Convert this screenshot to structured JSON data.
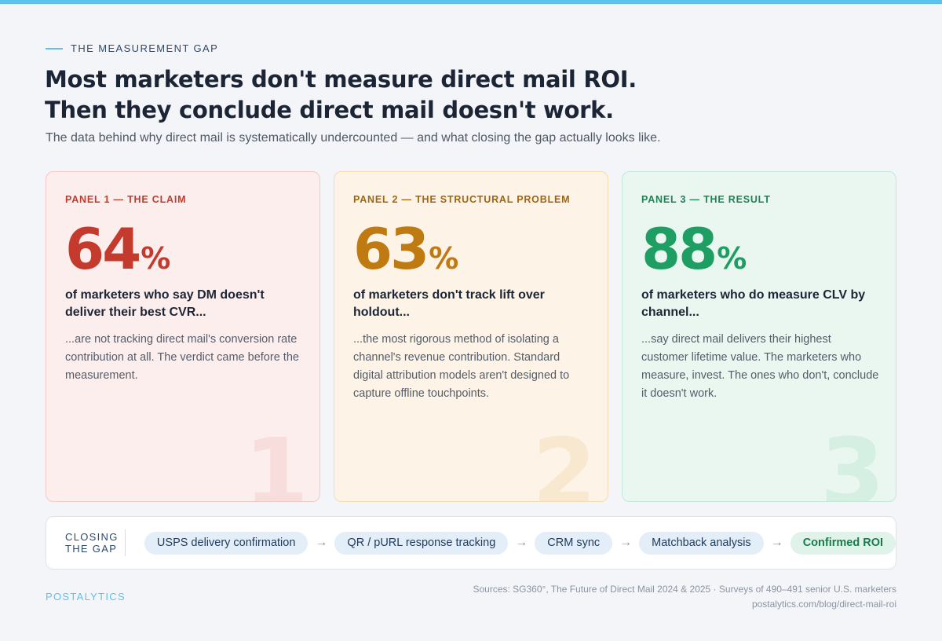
{
  "eyebrow": "THE MEASUREMENT GAP",
  "headline": {
    "line1": "Most marketers don't measure direct mail ROI.",
    "line2": "Then they conclude direct mail doesn't work."
  },
  "subhead": "The data behind why direct mail is systematically undercounted — and what closing the gap actually looks like.",
  "panels": [
    {
      "label": "PANEL 1 — THE CLAIM",
      "stat": "64",
      "unit": "%",
      "lead": "of marketers who say DM doesn't deliver their best CVR...",
      "body": "...are not tracking direct mail's conversion rate contribution at all. The verdict came before the measurement.",
      "ghost_number": "1",
      "accent_color": "#c43b2e",
      "ghost_color": "#f7dedd"
    },
    {
      "label": "PANEL 2 — THE STRUCTURAL PROBLEM",
      "stat": "63",
      "unit": "%",
      "lead": "of marketers don't track lift over holdout...",
      "body": "...the most rigorous method of isolating a channel's revenue contribution. Standard digital attribution models aren't designed to capture offline touchpoints.",
      "ghost_number": "2",
      "accent_color": "#c07a12",
      "ghost_color": "#f8e8cf"
    },
    {
      "label": "PANEL 3 — THE RESULT",
      "stat": "88",
      "unit": "%",
      "lead": "of marketers who do measure CLV by channel...",
      "body": "...say direct mail delivers their highest customer lifetime value. The marketers who measure, invest. The ones who don't, conclude it doesn't work.",
      "ghost_number": "3",
      "accent_color": "#1e9e62",
      "ghost_color": "#d5efe2"
    }
  ],
  "closing": {
    "label": "CLOSING THE GAP",
    "steps": [
      "USPS delivery confirmation",
      "QR / pURL response tracking",
      "CRM sync",
      "Matchback analysis",
      "Confirmed ROI"
    ],
    "arrow_glyph": "→"
  },
  "brand": "POSTALYTICS",
  "sources": {
    "line1": "Sources: SG360°, The Future of Direct Mail 2024 & 2025 · Surveys of 490–491 senior U.S. marketers",
    "line2": "postalytics.com/blog/direct-mail-roi"
  },
  "colors": {
    "top_bar": "#5bc3ee",
    "headline": "#1c2535",
    "pill_bg": "#e4eef8",
    "pill_final_bg": "#e0f3ea",
    "pill_final_text": "#1b7a4b"
  }
}
